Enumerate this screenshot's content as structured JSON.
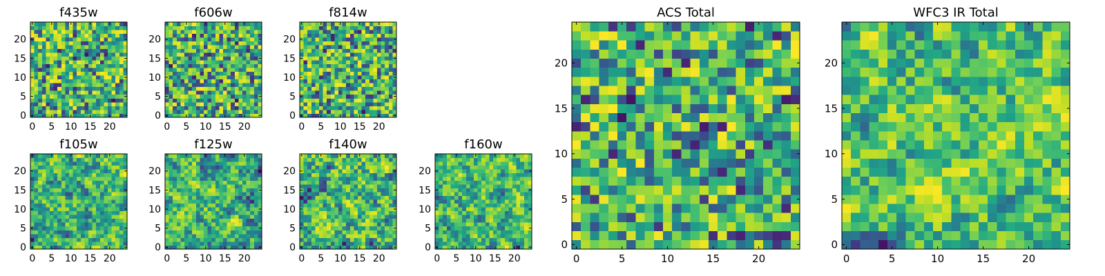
{
  "chart_data": [
    {
      "type": "heatmap",
      "title": "f435w",
      "xticks": [
        0,
        5,
        10,
        15,
        20
      ],
      "yticks": [
        0,
        5,
        10,
        15,
        20
      ],
      "xlim": [
        0,
        25
      ],
      "ylim": [
        0,
        25
      ],
      "grid_size": 25,
      "colormap": "viridis",
      "seed": 11,
      "smooth": 0
    },
    {
      "type": "heatmap",
      "title": "f606w",
      "xticks": [
        0,
        5,
        10,
        15,
        20
      ],
      "yticks": [
        0,
        5,
        10,
        15,
        20
      ],
      "xlim": [
        0,
        25
      ],
      "ylim": [
        0,
        25
      ],
      "grid_size": 25,
      "colormap": "viridis",
      "seed": 23,
      "smooth": 0
    },
    {
      "type": "heatmap",
      "title": "f814w",
      "xticks": [
        0,
        5,
        10,
        15,
        20
      ],
      "yticks": [
        0,
        5,
        10,
        15,
        20
      ],
      "xlim": [
        0,
        25
      ],
      "ylim": [
        0,
        25
      ],
      "grid_size": 25,
      "colormap": "viridis",
      "seed": 37,
      "smooth": 0
    },
    {
      "type": "heatmap",
      "title": "f105w",
      "xticks": [
        0,
        5,
        10,
        15,
        20
      ],
      "yticks": [
        0,
        5,
        10,
        15,
        20
      ],
      "xlim": [
        0,
        25
      ],
      "ylim": [
        0,
        25
      ],
      "grid_size": 25,
      "colormap": "viridis",
      "seed": 41,
      "smooth": 1
    },
    {
      "type": "heatmap",
      "title": "f125w",
      "xticks": [
        0,
        5,
        10,
        15,
        20
      ],
      "yticks": [
        0,
        5,
        10,
        15,
        20
      ],
      "xlim": [
        0,
        25
      ],
      "ylim": [
        0,
        25
      ],
      "grid_size": 25,
      "colormap": "viridis",
      "seed": 53,
      "smooth": 1
    },
    {
      "type": "heatmap",
      "title": "f140w",
      "xticks": [
        0,
        5,
        10,
        15,
        20
      ],
      "yticks": [
        0,
        5,
        10,
        15,
        20
      ],
      "xlim": [
        0,
        25
      ],
      "ylim": [
        0,
        25
      ],
      "grid_size": 25,
      "colormap": "viridis",
      "seed": 67,
      "smooth": 1
    },
    {
      "type": "heatmap",
      "title": "f160w",
      "xticks": [
        0,
        5,
        10,
        15,
        20
      ],
      "yticks": [
        0,
        5,
        10,
        15,
        20
      ],
      "xlim": [
        0,
        25
      ],
      "ylim": [
        0,
        25
      ],
      "grid_size": 25,
      "colormap": "viridis",
      "seed": 79,
      "smooth": 1
    },
    {
      "type": "heatmap",
      "title": "ACS Total",
      "xticks": [
        0,
        5,
        10,
        15,
        20
      ],
      "yticks": [
        0,
        5,
        10,
        15,
        20
      ],
      "xlim": [
        0,
        25
      ],
      "ylim": [
        0,
        25
      ],
      "grid_size": 25,
      "colormap": "viridis",
      "seed": 83,
      "smooth": 0
    },
    {
      "type": "heatmap",
      "title": "WFC3 IR Total",
      "xticks": [
        0,
        5,
        10,
        15,
        20
      ],
      "yticks": [
        0,
        5,
        10,
        15,
        20
      ],
      "xlim": [
        0,
        25
      ],
      "ylim": [
        0,
        25
      ],
      "grid_size": 25,
      "colormap": "viridis",
      "seed": 97,
      "smooth": 1
    }
  ]
}
